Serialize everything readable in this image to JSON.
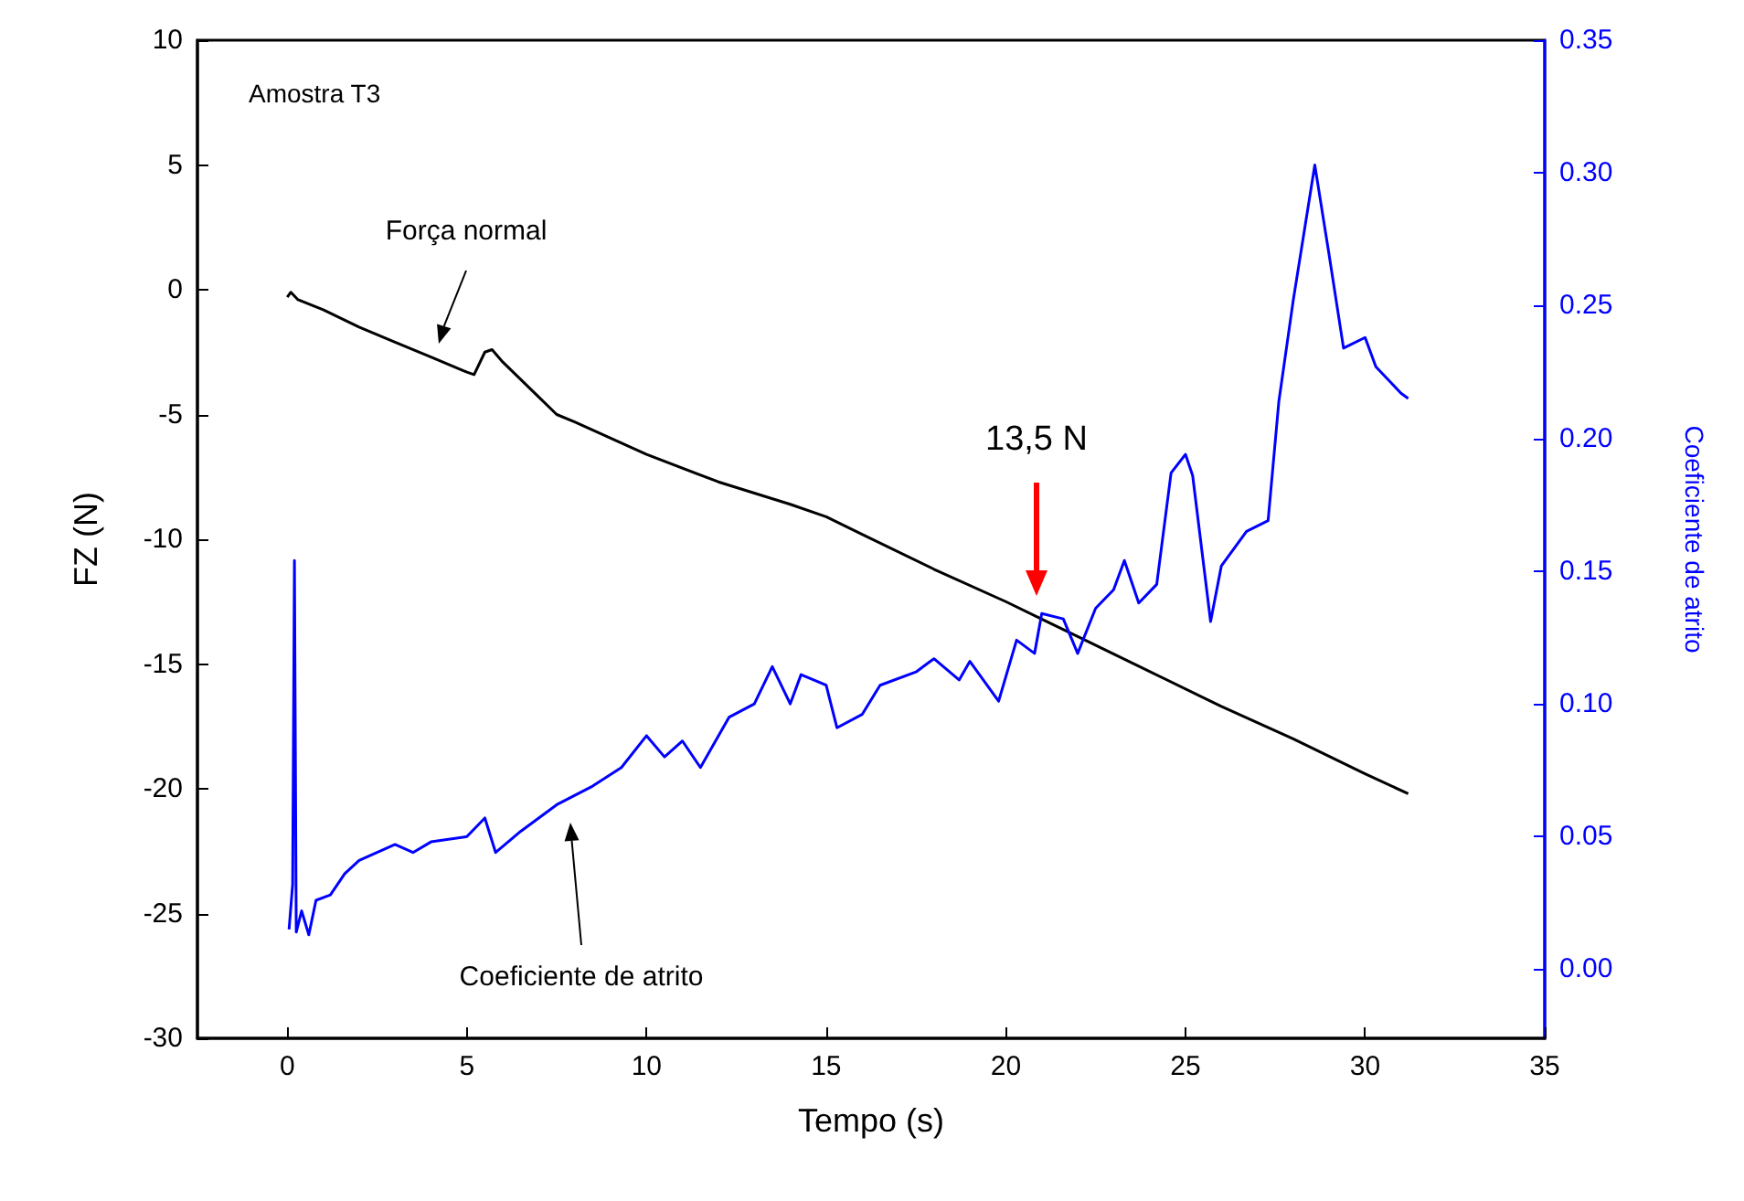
{
  "chart_data": {
    "type": "line",
    "xlabel": "Tempo (s)",
    "ylabel": "FZ (N)",
    "y2label": "Coeficiente de atrito",
    "xlim": [
      -2.5,
      35
    ],
    "xticks": [
      0,
      5,
      10,
      15,
      20,
      25,
      30,
      35
    ],
    "ylim": [
      -30,
      10
    ],
    "yticks": [
      -30,
      -25,
      -20,
      -15,
      -10,
      -5,
      0,
      5,
      10
    ],
    "y2lim": [
      -0.026,
      0.35
    ],
    "y2ticks": [
      {
        "value": 0,
        "label": "0.00"
      },
      {
        "value": 0.05,
        "label": "0.05"
      },
      {
        "value": 0.1,
        "label": "0.10"
      },
      {
        "value": 0.15,
        "label": "0.15"
      },
      {
        "value": 0.2,
        "label": "0.20"
      },
      {
        "value": 0.25,
        "label": "0.25"
      },
      {
        "value": 0.3,
        "label": "0.30"
      },
      {
        "value": 0.35,
        "label": "0.35"
      }
    ],
    "grid": false,
    "marker": "none",
    "line_style": "solid",
    "annotations": [
      "Amostra T3",
      "Força normal",
      "Coeficiente de atrito",
      "13,5 N"
    ],
    "series": [
      {
        "color": "#000000",
        "x": [
          0,
          0.1,
          0.3,
          1,
          2,
          3,
          4,
          5,
          5.2,
          5.5,
          5.7,
          6,
          7,
          7.5,
          8,
          10,
          12,
          14,
          15,
          16,
          18,
          20,
          21,
          22,
          24,
          26,
          28,
          30,
          31.2
        ],
        "values": [
          -0.3,
          -0.1,
          -0.4,
          -0.8,
          -1.5,
          -2.1,
          -2.7,
          -3.3,
          -3.4,
          -2.5,
          -2.4,
          -2.9,
          -4.3,
          -5.0,
          -5.3,
          -6.6,
          -7.7,
          -8.6,
          -9.1,
          -9.8,
          -11.2,
          -12.5,
          -13.2,
          -13.9,
          -15.3,
          -16.7,
          -18.0,
          -19.4,
          -20.2
        ]
      },
      {
        "color": "#0000ff",
        "axis": "y2",
        "x": [
          0.05,
          0.15,
          0.2,
          0.25,
          0.4,
          0.6,
          0.8,
          1.2,
          1.6,
          2,
          3,
          3.5,
          4,
          5,
          5.5,
          5.8,
          6.5,
          7,
          7.5,
          8.5,
          9.3,
          10,
          10.5,
          11,
          11.5,
          12.3,
          13,
          13.5,
          14,
          14.3,
          15,
          15.3,
          16,
          16.5,
          17.5,
          18,
          18.7,
          19,
          19.8,
          20.3,
          20.8,
          21,
          21.6,
          22,
          22.5,
          23,
          23.3,
          23.7,
          24.2,
          24.6,
          25,
          25.2,
          25.7,
          26,
          26.7,
          27.3,
          27.6,
          28,
          28.6,
          29,
          29.4,
          30,
          30.3,
          31,
          31.2
        ],
        "values": [
          0.015,
          0.032,
          0.154,
          0.014,
          0.022,
          0.013,
          0.026,
          0.028,
          0.036,
          0.041,
          0.047,
          0.044,
          0.048,
          0.05,
          0.057,
          0.044,
          0.052,
          0.057,
          0.062,
          0.069,
          0.076,
          0.088,
          0.08,
          0.086,
          0.076,
          0.095,
          0.1,
          0.114,
          0.1,
          0.111,
          0.107,
          0.091,
          0.096,
          0.107,
          0.112,
          0.117,
          0.109,
          0.116,
          0.101,
          0.124,
          0.119,
          0.134,
          0.132,
          0.119,
          0.136,
          0.143,
          0.154,
          0.138,
          0.145,
          0.187,
          0.194,
          0.186,
          0.131,
          0.152,
          0.165,
          0.169,
          0.214,
          0.252,
          0.303,
          0.269,
          0.234,
          0.238,
          0.227,
          0.217,
          0.215
        ]
      }
    ]
  }
}
